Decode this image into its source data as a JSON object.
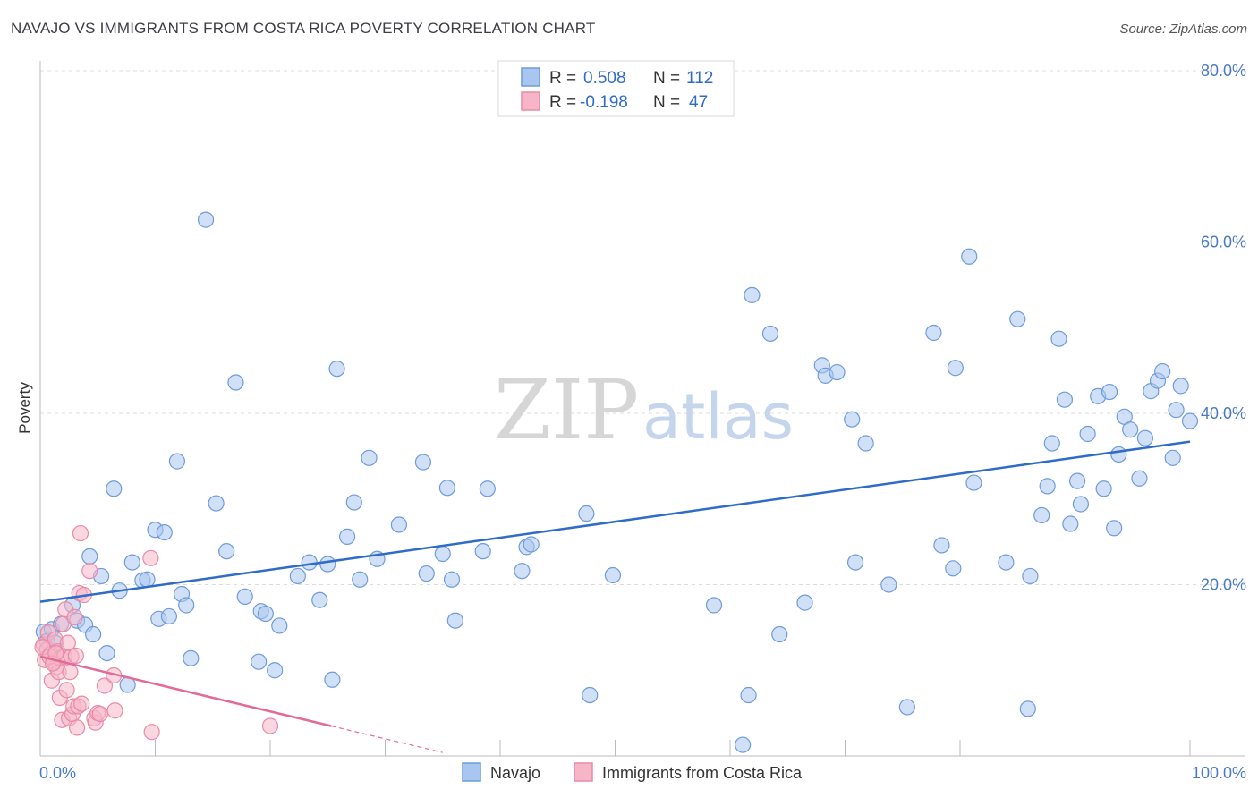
{
  "title": "NAVAJO VS IMMIGRANTS FROM COSTA RICA POVERTY CORRELATION CHART",
  "source": "Source: ZipAtlas.com",
  "watermark": {
    "zip": "ZIP",
    "atlas": "atlas"
  },
  "legend": {
    "rows": [
      {
        "r_label": "R = ",
        "r_value": "0.508",
        "n_label": "N = ",
        "n_value": "112",
        "color": "#a9c6f0"
      },
      {
        "r_label": "R = ",
        "r_value": "-0.198",
        "n_label": "N = ",
        "n_value": "47",
        "color": "#f6b6c8"
      }
    ]
  },
  "bottom_legend": [
    {
      "label": "Navajo",
      "color": "#a9c6f0"
    },
    {
      "label": "Immigrants from Costa Rica",
      "color": "#f6b6c8"
    }
  ],
  "chart_data": {
    "type": "scatter",
    "title": "NAVAJO VS IMMIGRANTS FROM COSTA RICA POVERTY CORRELATION CHART",
    "xlabel": "",
    "ylabel": "Poverty",
    "xlim": [
      0,
      100
    ],
    "ylim": [
      0,
      80
    ],
    "x_tick_labels": [
      "0.0%",
      "100.0%"
    ],
    "y_ticks": [
      20,
      40,
      60,
      80
    ],
    "y_tick_labels": [
      "20.0%",
      "40.0%",
      "60.0%",
      "80.0%"
    ],
    "grid": true,
    "series": [
      {
        "name": "Navajo",
        "color": "#a9c6f0",
        "stroke": "#6f9bd8",
        "trend": {
          "x": [
            0,
            100
          ],
          "y": [
            18.0,
            36.7
          ],
          "color": "#2f6bc8"
        },
        "points": [
          [
            0.3,
            14.5
          ],
          [
            0.6,
            13.4
          ],
          [
            1.0,
            14.8
          ],
          [
            1.3,
            13.2
          ],
          [
            1.8,
            15.4
          ],
          [
            2.8,
            17.6
          ],
          [
            3.2,
            15.8
          ],
          [
            3.9,
            15.3
          ],
          [
            4.3,
            23.3
          ],
          [
            4.6,
            14.2
          ],
          [
            5.3,
            21.0
          ],
          [
            5.8,
            12.0
          ],
          [
            6.4,
            31.2
          ],
          [
            6.9,
            19.3
          ],
          [
            7.6,
            8.3
          ],
          [
            8.0,
            22.6
          ],
          [
            8.9,
            20.5
          ],
          [
            9.3,
            20.6
          ],
          [
            10.0,
            26.4
          ],
          [
            10.3,
            16.0
          ],
          [
            10.8,
            26.1
          ],
          [
            11.2,
            16.3
          ],
          [
            11.9,
            34.4
          ],
          [
            12.3,
            18.9
          ],
          [
            12.7,
            17.6
          ],
          [
            13.1,
            11.4
          ],
          [
            14.4,
            62.6
          ],
          [
            15.3,
            29.5
          ],
          [
            16.2,
            23.9
          ],
          [
            17.0,
            43.6
          ],
          [
            17.8,
            18.6
          ],
          [
            19.0,
            11.0
          ],
          [
            19.2,
            16.9
          ],
          [
            19.6,
            16.6
          ],
          [
            20.4,
            10.0
          ],
          [
            20.8,
            15.2
          ],
          [
            22.4,
            21.0
          ],
          [
            23.4,
            22.6
          ],
          [
            24.3,
            18.2
          ],
          [
            25.0,
            22.4
          ],
          [
            25.4,
            8.9
          ],
          [
            25.8,
            45.2
          ],
          [
            26.7,
            25.6
          ],
          [
            27.3,
            29.6
          ],
          [
            27.8,
            20.6
          ],
          [
            28.6,
            34.8
          ],
          [
            29.3,
            23.0
          ],
          [
            31.2,
            27.0
          ],
          [
            33.3,
            34.3
          ],
          [
            33.6,
            21.3
          ],
          [
            35.0,
            23.6
          ],
          [
            35.4,
            31.3
          ],
          [
            35.8,
            20.6
          ],
          [
            36.1,
            15.8
          ],
          [
            38.5,
            23.9
          ],
          [
            38.9,
            31.2
          ],
          [
            41.9,
            21.6
          ],
          [
            42.3,
            24.4
          ],
          [
            42.7,
            24.7
          ],
          [
            47.5,
            28.3
          ],
          [
            47.8,
            7.1
          ],
          [
            49.8,
            21.1
          ],
          [
            58.6,
            17.6
          ],
          [
            61.1,
            1.3
          ],
          [
            61.6,
            7.1
          ],
          [
            61.9,
            53.8
          ],
          [
            63.5,
            49.3
          ],
          [
            64.3,
            14.2
          ],
          [
            66.5,
            17.9
          ],
          [
            68.0,
            45.6
          ],
          [
            68.3,
            44.4
          ],
          [
            69.3,
            44.8
          ],
          [
            70.6,
            39.3
          ],
          [
            70.9,
            22.6
          ],
          [
            71.8,
            36.5
          ],
          [
            73.8,
            20.0
          ],
          [
            75.4,
            5.7
          ],
          [
            77.7,
            49.4
          ],
          [
            78.4,
            24.6
          ],
          [
            79.4,
            21.9
          ],
          [
            79.6,
            45.3
          ],
          [
            80.8,
            58.3
          ],
          [
            81.2,
            31.9
          ],
          [
            84.0,
            22.6
          ],
          [
            85.0,
            51.0
          ],
          [
            85.9,
            5.5
          ],
          [
            86.1,
            21.0
          ],
          [
            87.1,
            28.1
          ],
          [
            87.6,
            31.5
          ],
          [
            88.0,
            36.5
          ],
          [
            88.6,
            48.7
          ],
          [
            89.1,
            41.6
          ],
          [
            89.6,
            27.1
          ],
          [
            90.2,
            32.1
          ],
          [
            90.5,
            29.4
          ],
          [
            91.1,
            37.6
          ],
          [
            92.0,
            42.0
          ],
          [
            92.5,
            31.2
          ],
          [
            93.0,
            42.5
          ],
          [
            93.4,
            26.6
          ],
          [
            93.8,
            35.2
          ],
          [
            94.3,
            39.6
          ],
          [
            94.8,
            38.1
          ],
          [
            95.6,
            32.4
          ],
          [
            96.1,
            37.1
          ],
          [
            96.6,
            42.6
          ],
          [
            97.2,
            43.8
          ],
          [
            97.6,
            44.9
          ],
          [
            98.5,
            34.8
          ],
          [
            98.8,
            40.4
          ],
          [
            99.2,
            43.2
          ],
          [
            100.0,
            39.1
          ]
        ]
      },
      {
        "name": "Immigrants from Costa Rica",
        "color": "#f6b6c8",
        "stroke": "#e98aa8",
        "trend": {
          "x": [
            0,
            25.3
          ],
          "y": [
            11.6,
            3.5
          ],
          "dash_x": [
            25.3,
            35.0
          ],
          "dash_y": [
            3.5,
            0.4
          ],
          "color": "#e36a95"
        },
        "points": [
          [
            0.3,
            13.0
          ],
          [
            0.4,
            11.2
          ],
          [
            0.6,
            12.4
          ],
          [
            0.7,
            14.4
          ],
          [
            0.9,
            11.9
          ],
          [
            1.0,
            8.8
          ],
          [
            1.2,
            11.0
          ],
          [
            1.3,
            13.6
          ],
          [
            1.4,
            10.4
          ],
          [
            1.5,
            12.2
          ],
          [
            1.6,
            9.8
          ],
          [
            1.7,
            6.8
          ],
          [
            1.8,
            11.4
          ],
          [
            1.9,
            4.2
          ],
          [
            2.0,
            15.4
          ],
          [
            2.1,
            11.6
          ],
          [
            2.2,
            17.1
          ],
          [
            2.3,
            7.7
          ],
          [
            2.5,
            4.4
          ],
          [
            2.6,
            9.8
          ],
          [
            2.7,
            11.6
          ],
          [
            2.8,
            4.9
          ],
          [
            2.9,
            5.8
          ],
          [
            3.0,
            16.2
          ],
          [
            3.2,
            3.3
          ],
          [
            3.3,
            5.8
          ],
          [
            3.4,
            19.0
          ],
          [
            3.5,
            26.0
          ],
          [
            3.6,
            6.1
          ],
          [
            3.8,
            18.8
          ],
          [
            4.3,
            21.6
          ],
          [
            4.7,
            4.4
          ],
          [
            4.8,
            3.9
          ],
          [
            5.0,
            5.0
          ],
          [
            5.2,
            4.9
          ],
          [
            5.6,
            8.2
          ],
          [
            6.4,
            9.4
          ],
          [
            6.5,
            5.3
          ],
          [
            9.6,
            23.1
          ],
          [
            9.7,
            2.8
          ],
          [
            20.0,
            3.5
          ],
          [
            0.2,
            12.7
          ],
          [
            0.8,
            11.6
          ],
          [
            1.1,
            10.8
          ],
          [
            2.4,
            13.2
          ],
          [
            3.1,
            11.7
          ],
          [
            1.35,
            12.0
          ]
        ]
      }
    ]
  }
}
